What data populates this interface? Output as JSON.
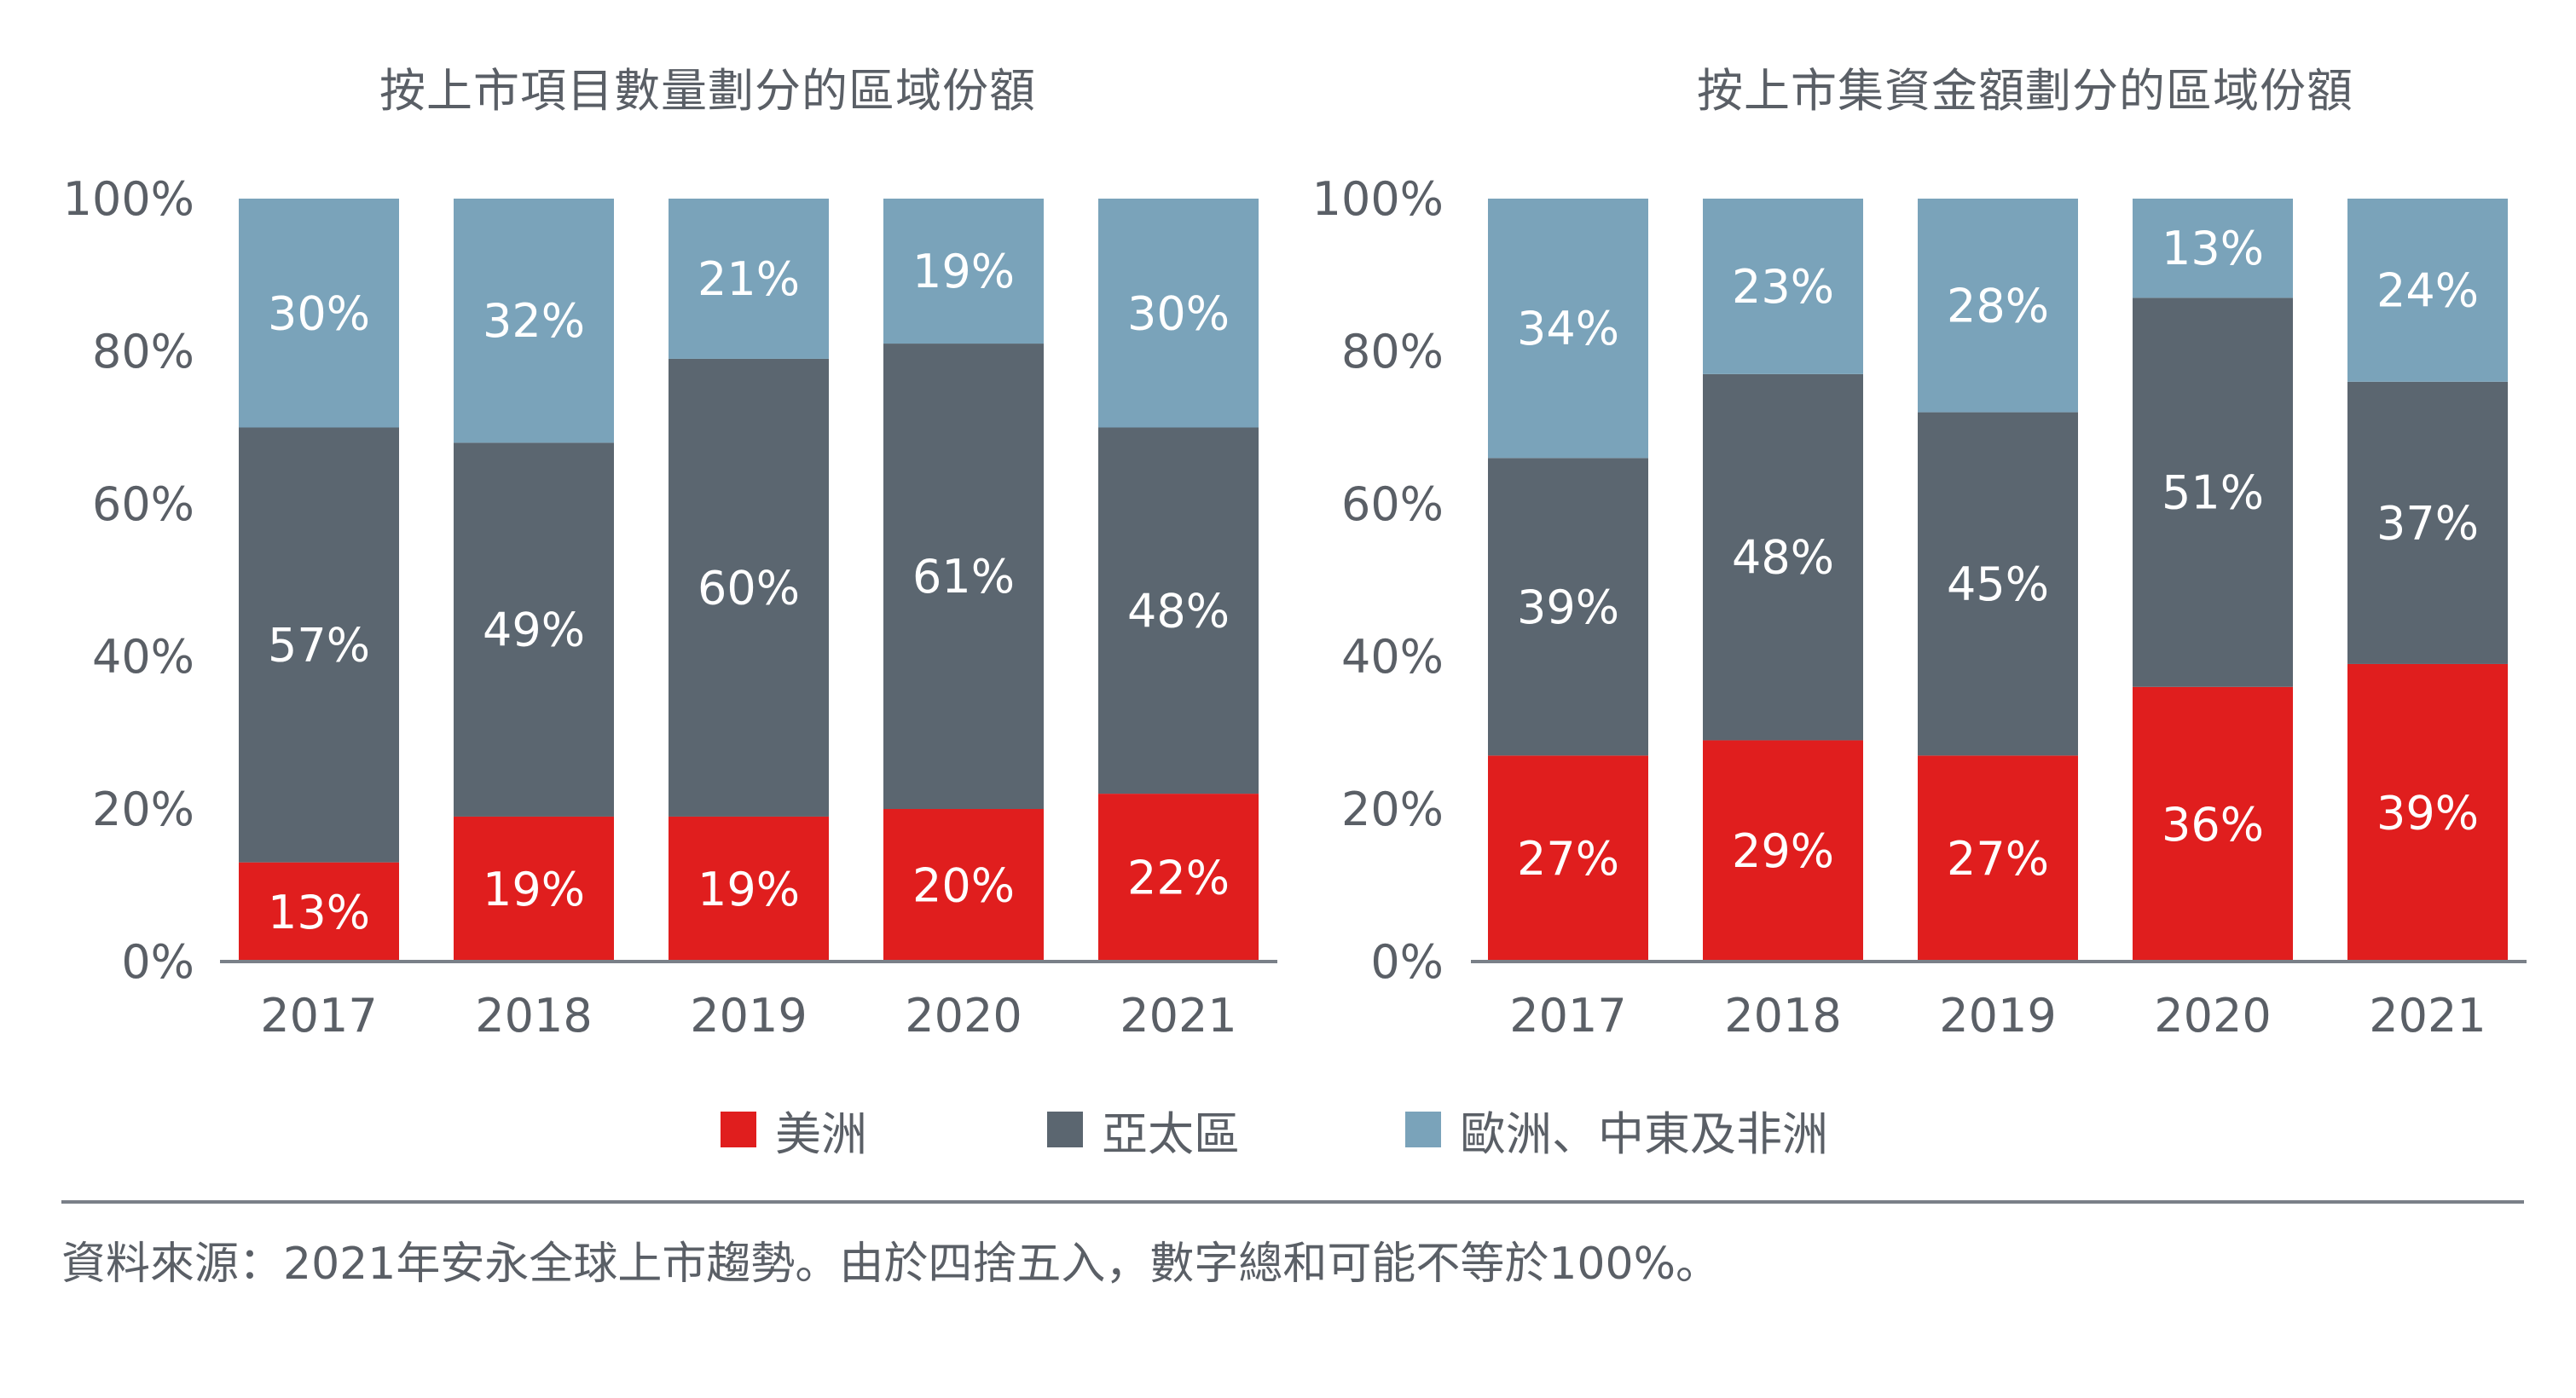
{
  "chart_data": [
    {
      "type": "bar",
      "stacked": true,
      "title": "按上市項目數量劃分的區域份額",
      "categories": [
        "2017",
        "2018",
        "2019",
        "2020",
        "2021"
      ],
      "ylim": [
        0,
        100
      ],
      "y_ticks": [
        "0%",
        "20%",
        "40%",
        "60%",
        "80%",
        "100%"
      ],
      "series": [
        {
          "name": "美洲",
          "values": [
            13,
            19,
            19,
            20,
            22
          ],
          "labels": [
            "13%",
            "19%",
            "19%",
            "20%",
            "22%"
          ]
        },
        {
          "name": "亞太區",
          "values": [
            57,
            49,
            60,
            61,
            48
          ],
          "labels": [
            "57%",
            "49%",
            "60%",
            "61%",
            "48%"
          ]
        },
        {
          "name": "歐洲、中東及非洲",
          "values": [
            30,
            32,
            21,
            19,
            30
          ],
          "labels": [
            "30%",
            "32%",
            "21%",
            "19%",
            "30%"
          ]
        }
      ]
    },
    {
      "type": "bar",
      "stacked": true,
      "title": "按上市集資金額劃分的區域份額",
      "categories": [
        "2017",
        "2018",
        "2019",
        "2020",
        "2021"
      ],
      "ylim": [
        0,
        100
      ],
      "y_ticks": [
        "0%",
        "20%",
        "40%",
        "60%",
        "80%",
        "100%"
      ],
      "series": [
        {
          "name": "美洲",
          "values": [
            27,
            29,
            27,
            36,
            39
          ],
          "labels": [
            "27%",
            "29%",
            "27%",
            "36%",
            "39%"
          ]
        },
        {
          "name": "亞太區",
          "values": [
            39,
            48,
            45,
            51,
            37
          ],
          "labels": [
            "39%",
            "48%",
            "45%",
            "51%",
            "37%"
          ]
        },
        {
          "name": "歐洲、中東及非洲",
          "values": [
            34,
            23,
            28,
            13,
            24
          ],
          "labels": [
            "34%",
            "23%",
            "28%",
            "13%",
            "24%"
          ]
        }
      ]
    }
  ],
  "legend": {
    "americas": "美洲",
    "apac": "亞太區",
    "emeia": "歐洲、中東及非洲"
  },
  "colors": {
    "americas": "#e01e1e",
    "apac": "#5b6670",
    "emeia": "#7aa3ba",
    "axis": "#7a8088",
    "text": "#5a5f66"
  },
  "footer": {
    "source": "資料來源：2021年安永全球上市趨勢。由於四捨五入，數字總和可能不等於100%。"
  }
}
